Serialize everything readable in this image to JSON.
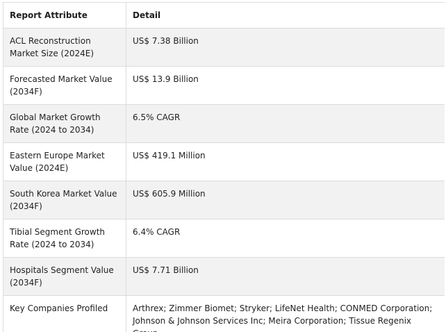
{
  "table": {
    "headers": [
      "Report Attribute",
      "Detail"
    ],
    "rows": [
      {
        "attribute": "ACL Reconstruction Market Size (2024E)",
        "detail": "US$ 7.38 Billion"
      },
      {
        "attribute": "Forecasted Market Value (2034F)",
        "detail": "US$ 13.9 Billion"
      },
      {
        "attribute": "Global Market Growth Rate (2024 to 2034)",
        "detail": "6.5% CAGR"
      },
      {
        "attribute": "Eastern Europe Market Value (2024E)",
        "detail": "US$ 419.1 Million"
      },
      {
        "attribute": "South Korea Market Value (2034F)",
        "detail": "US$ 605.9 Million"
      },
      {
        "attribute": "Tibial Segment Growth Rate (2024 to 2034)",
        "detail": "6.4% CAGR"
      },
      {
        "attribute": "Hospitals Segment Value (2034F)",
        "detail": "US$ 7.71 Billion"
      },
      {
        "attribute": "Key Companies Profiled",
        "detail": "Arthrex; Zimmer Biomet; Stryker; LifeNet Health; CONMED Corporation; Johnson & Johnson Services Inc; Meira Corporation; Tissue Regenix Group"
      }
    ]
  }
}
